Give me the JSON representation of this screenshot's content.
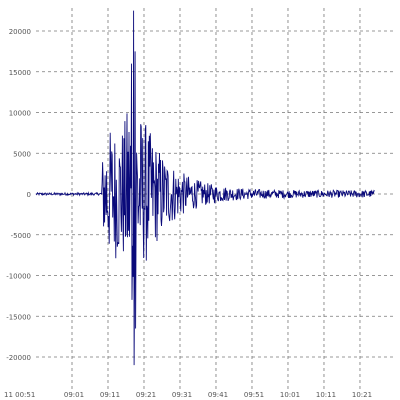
{
  "chart_data": {
    "type": "line",
    "title": "",
    "xlabel": "",
    "ylabel": "",
    "xlim_minutes": [
      0,
      80
    ],
    "ylim": [
      -25000,
      25000
    ],
    "grid": true,
    "legend": "none",
    "line_color": "#0a0a7a",
    "grid_color": "#777777",
    "x_ticks": [
      {
        "label": "11 00:51",
        "minute": 0
      },
      {
        "label": "09:01",
        "minute": 8.5
      },
      {
        "label": "09:11",
        "minute": 17
      },
      {
        "label": "09:21",
        "minute": 25.5
      },
      {
        "label": "09:31",
        "minute": 34
      },
      {
        "label": "09:41",
        "minute": 42.5
      },
      {
        "label": "09:51",
        "minute": 51
      },
      {
        "label": "10:01",
        "minute": 59.5
      },
      {
        "label": "10:11",
        "minute": 68
      },
      {
        "label": "10:21",
        "minute": 76.5
      }
    ],
    "y_ticks": [
      {
        "label": "20000",
        "value": 20000
      },
      {
        "label": "15000",
        "value": 15000
      },
      {
        "label": "10000",
        "value": 10000
      },
      {
        "label": "5000",
        "value": 5000
      },
      {
        "label": "0",
        "value": 0
      },
      {
        "label": "-5000",
        "value": -5000
      },
      {
        "label": "-10000",
        "value": -10000
      },
      {
        "label": "-15000",
        "value": -15000
      },
      {
        "label": "-20000",
        "value": -20000
      }
    ],
    "signal": {
      "onset_minute": 15.5,
      "peak_minute": 23,
      "peak_max": 22500,
      "peak_min": -21000
    }
  }
}
